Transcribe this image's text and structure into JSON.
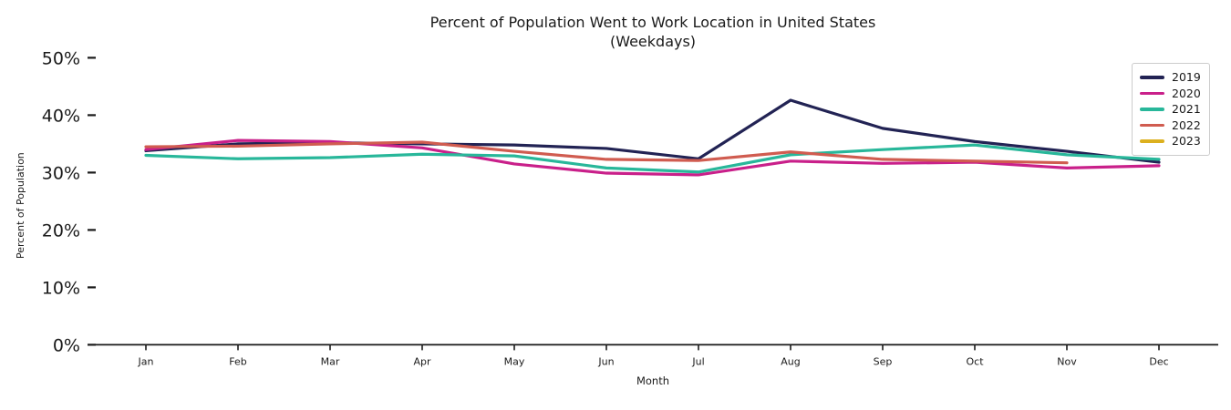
{
  "chart_data": {
    "type": "line",
    "title": "Percent of Population Went to Work Location in United States",
    "subtitle": "(Weekdays)",
    "xlabel": "Month",
    "ylabel": "Percent of Population",
    "categories": [
      "Jan",
      "Feb",
      "Mar",
      "Apr",
      "May",
      "Jun",
      "Jul",
      "Aug",
      "Sep",
      "Oct",
      "Nov",
      "Dec"
    ],
    "yticks": [
      0,
      10,
      20,
      30,
      40,
      50
    ],
    "ytick_labels": [
      "0%",
      "10%",
      "20%",
      "30%",
      "40%",
      "50%"
    ],
    "ylim": [
      0,
      51.5
    ],
    "grid": false,
    "legend_position": "upper right",
    "axis_color": "#1a1a1a",
    "series": [
      {
        "name": "2019",
        "color": "#222354",
        "values": [
          33.8,
          35.0,
          35.2,
          35.0,
          34.8,
          34.2,
          32.4,
          42.6,
          37.7,
          35.4,
          33.7,
          31.8
        ]
      },
      {
        "name": "2020",
        "color": "#c9208a",
        "values": [
          34.0,
          35.6,
          35.4,
          34.3,
          31.5,
          29.9,
          29.6,
          32.0,
          31.6,
          31.8,
          30.8,
          31.2
        ]
      },
      {
        "name": "2021",
        "color": "#28b79a",
        "values": [
          33.0,
          32.4,
          32.6,
          33.2,
          32.9,
          30.8,
          30.1,
          33.1,
          34.0,
          34.8,
          33.1,
          32.3
        ]
      },
      {
        "name": "2022",
        "color": "#d05c50",
        "values": [
          34.5,
          34.6,
          35.0,
          35.3,
          33.7,
          32.3,
          32.1,
          33.6,
          32.3,
          32.0,
          31.7,
          null
        ]
      },
      {
        "name": "2023",
        "color": "#dcb01f",
        "values": [
          null,
          null,
          null,
          null,
          null,
          null,
          null,
          null,
          null,
          null,
          null,
          null
        ]
      }
    ]
  }
}
